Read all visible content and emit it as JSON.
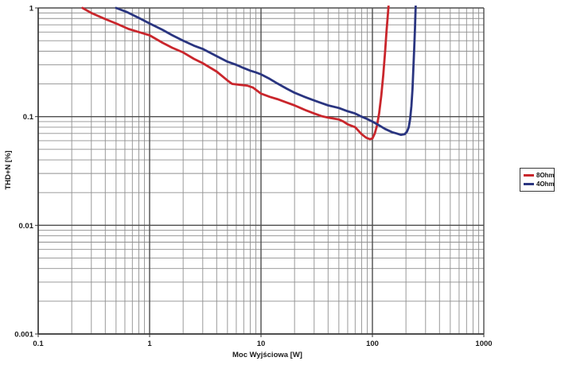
{
  "chart_data": {
    "type": "line",
    "title": "",
    "xlabel": "Moc Wyjściowa [W]",
    "ylabel": "THD+N [%]",
    "x_scale": "log",
    "y_scale": "log",
    "xlim": [
      0.1,
      1000
    ],
    "ylim": [
      0.001,
      1
    ],
    "grid": "log major and minor gridlines, on",
    "legend_position": "outside right, boxed",
    "x_ticks": [
      {
        "v": 0.1,
        "label": "0.1"
      },
      {
        "v": 1,
        "label": "1"
      },
      {
        "v": 10,
        "label": "10"
      },
      {
        "v": 100,
        "label": "100"
      },
      {
        "v": 1000,
        "label": "1000"
      }
    ],
    "y_ticks": [
      {
        "v": 1,
        "label": "1"
      },
      {
        "v": 0.1,
        "label": "0.1"
      },
      {
        "v": 0.01,
        "label": "0.01"
      },
      {
        "v": 0.001,
        "label": "0.001"
      }
    ],
    "series": [
      {
        "name": "8Ohm",
        "color": "#c9262c",
        "points": [
          [
            0.25,
            1.0
          ],
          [
            0.3,
            0.9
          ],
          [
            0.4,
            0.79
          ],
          [
            0.5,
            0.72
          ],
          [
            0.65,
            0.64
          ],
          [
            0.8,
            0.6
          ],
          [
            1,
            0.56
          ],
          [
            1.3,
            0.48
          ],
          [
            1.6,
            0.43
          ],
          [
            2,
            0.39
          ],
          [
            2.5,
            0.34
          ],
          [
            3,
            0.31
          ],
          [
            4,
            0.26
          ],
          [
            5,
            0.215
          ],
          [
            5.5,
            0.2
          ],
          [
            6.5,
            0.196
          ],
          [
            7.5,
            0.193
          ],
          [
            8.5,
            0.185
          ],
          [
            10,
            0.163
          ],
          [
            12,
            0.152
          ],
          [
            14,
            0.145
          ],
          [
            17,
            0.135
          ],
          [
            20,
            0.127
          ],
          [
            25,
            0.115
          ],
          [
            30,
            0.107
          ],
          [
            35,
            0.101
          ],
          [
            40,
            0.098
          ],
          [
            45,
            0.096
          ],
          [
            50,
            0.094
          ],
          [
            55,
            0.09
          ],
          [
            60,
            0.085
          ],
          [
            70,
            0.08
          ],
          [
            80,
            0.069
          ],
          [
            88,
            0.064
          ],
          [
            95,
            0.062
          ],
          [
            100,
            0.063
          ],
          [
            105,
            0.07
          ],
          [
            110,
            0.083
          ],
          [
            115,
            0.108
          ],
          [
            120,
            0.155
          ],
          [
            125,
            0.24
          ],
          [
            130,
            0.4
          ],
          [
            134,
            0.62
          ],
          [
            138,
            0.9
          ],
          [
            141,
            1.2
          ]
        ]
      },
      {
        "name": "4Ohm",
        "color": "#2a3580",
        "points": [
          [
            0.5,
            1.0
          ],
          [
            0.62,
            0.92
          ],
          [
            0.8,
            0.81
          ],
          [
            1,
            0.72
          ],
          [
            1.3,
            0.63
          ],
          [
            1.6,
            0.56
          ],
          [
            2,
            0.5
          ],
          [
            2.5,
            0.45
          ],
          [
            3,
            0.42
          ],
          [
            4,
            0.36
          ],
          [
            5,
            0.32
          ],
          [
            6,
            0.3
          ],
          [
            7,
            0.28
          ],
          [
            8,
            0.265
          ],
          [
            9,
            0.255
          ],
          [
            10,
            0.245
          ],
          [
            12,
            0.222
          ],
          [
            14,
            0.202
          ],
          [
            17,
            0.181
          ],
          [
            20,
            0.166
          ],
          [
            25,
            0.151
          ],
          [
            30,
            0.141
          ],
          [
            35,
            0.133
          ],
          [
            40,
            0.127
          ],
          [
            50,
            0.12
          ],
          [
            60,
            0.112
          ],
          [
            70,
            0.107
          ],
          [
            80,
            0.1
          ],
          [
            90,
            0.095
          ],
          [
            100,
            0.09
          ],
          [
            115,
            0.083
          ],
          [
            130,
            0.077
          ],
          [
            150,
            0.072
          ],
          [
            165,
            0.07
          ],
          [
            180,
            0.068
          ],
          [
            195,
            0.069
          ],
          [
            205,
            0.073
          ],
          [
            212,
            0.08
          ],
          [
            218,
            0.095
          ],
          [
            224,
            0.125
          ],
          [
            229,
            0.18
          ],
          [
            233,
            0.27
          ],
          [
            237,
            0.42
          ],
          [
            241,
            0.65
          ],
          [
            244,
            0.95
          ],
          [
            246,
            1.2
          ]
        ]
      }
    ]
  },
  "legend": {
    "items": [
      {
        "label": "8Ohm",
        "color": "#c9262c"
      },
      {
        "label": "4Ohm",
        "color": "#2a3580"
      }
    ]
  },
  "style": {
    "grid_minor_color": "#8f8f8f",
    "grid_major_color": "#4d4d4d",
    "axis_color": "#333333",
    "background": "#ffffff"
  }
}
